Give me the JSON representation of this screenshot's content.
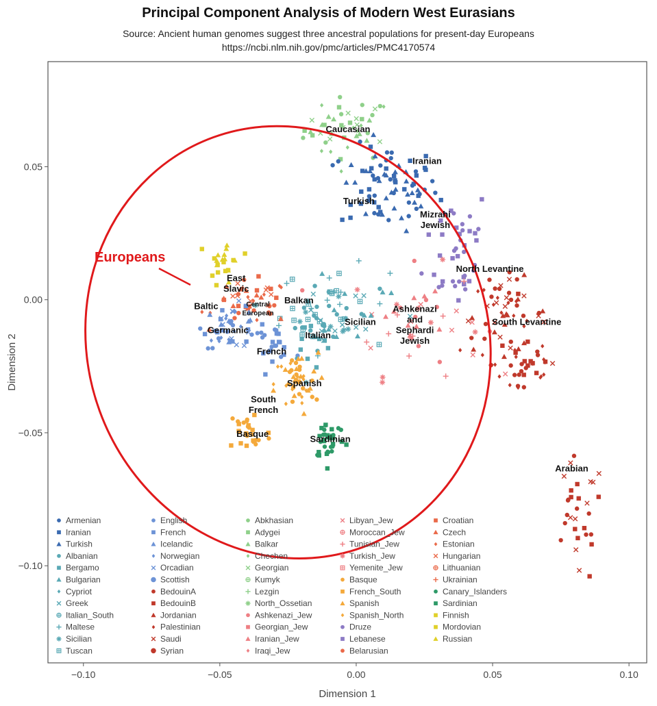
{
  "header": {
    "title": "Principal Component Analysis of Modern West Eurasians",
    "subtitle_line1": "Source: Ancient human genomes suggest three ancestral populations for present-day Europeans",
    "subtitle_line2": "https://ncbi.nlm.nih.gov/pmc/articles/PMC4170574"
  },
  "chart_data": {
    "type": "scatter",
    "title": "Principal Component Analysis of Modern West Eurasians",
    "xlabel": "Dimension 1",
    "ylabel": "Dimension 2",
    "xlim": [
      -0.113,
      0.1065
    ],
    "ylim": [
      -0.1365,
      0.0895
    ],
    "xticks": [
      -0.1,
      -0.05,
      0.0,
      0.05,
      0.1
    ],
    "xtick_labels": [
      "−0.10",
      "−0.05",
      "0.00",
      "0.05",
      "0.10"
    ],
    "yticks": [
      0.05,
      0.0,
      -0.05,
      -0.1
    ],
    "ytick_labels": [
      "0.05",
      "0.00",
      "−0.05",
      "−0.10"
    ],
    "grid": false,
    "legend_position": "bottom-inside",
    "highlight": {
      "label": "Europeans",
      "color": "#e0191b",
      "ellipse_center": [
        -0.025,
        -0.016
      ],
      "ellipse_radii": [
        0.0735,
        0.082
      ],
      "ellipse_rotation_deg": -20
    },
    "cluster_labels": [
      {
        "text": "Caucasian",
        "x": -0.003,
        "y": 0.064
      },
      {
        "text": "Iranian",
        "x": 0.026,
        "y": 0.052
      },
      {
        "text": "Turkish",
        "x": 0.001,
        "y": 0.037
      },
      {
        "text": "Mizrahi",
        "x": 0.029,
        "y": 0.032
      },
      {
        "text": "Jewish",
        "x": 0.029,
        "y": 0.028
      },
      {
        "text": "North Levantine",
        "x": 0.049,
        "y": 0.0115
      },
      {
        "text": "East",
        "x": -0.044,
        "y": 0.008
      },
      {
        "text": "Slavic",
        "x": -0.044,
        "y": 0.004
      },
      {
        "text": "Central",
        "x": -0.036,
        "y": -0.0015,
        "size": "small"
      },
      {
        "text": "European",
        "x": -0.036,
        "y": -0.0048,
        "size": "small"
      },
      {
        "text": "Baltic",
        "x": -0.055,
        "y": -0.0025
      },
      {
        "text": "Balkan",
        "x": -0.021,
        "y": -0.0003
      },
      {
        "text": "Germanic",
        "x": -0.047,
        "y": -0.0115
      },
      {
        "text": "Ashkenazi",
        "x": 0.0215,
        "y": -0.0035
      },
      {
        "text": "and",
        "x": 0.0215,
        "y": -0.0075
      },
      {
        "text": "Sephardi",
        "x": 0.0215,
        "y": -0.0115
      },
      {
        "text": "Jewish",
        "x": 0.0215,
        "y": -0.0155
      },
      {
        "text": "Sicilian",
        "x": 0.0015,
        "y": -0.0085
      },
      {
        "text": "South Levantine",
        "x": 0.0625,
        "y": -0.0085
      },
      {
        "text": "Italian",
        "x": -0.014,
        "y": -0.0135
      },
      {
        "text": "French",
        "x": -0.031,
        "y": -0.0195
      },
      {
        "text": "Spanish",
        "x": -0.019,
        "y": -0.0315
      },
      {
        "text": "South",
        "x": -0.034,
        "y": -0.0375
      },
      {
        "text": "French",
        "x": -0.034,
        "y": -0.0415
      },
      {
        "text": "Basque",
        "x": -0.038,
        "y": -0.0505
      },
      {
        "text": "Sardinian",
        "x": -0.0095,
        "y": -0.0525
      },
      {
        "text": "Arabian",
        "x": 0.079,
        "y": -0.0635
      }
    ],
    "legend": [
      {
        "name": "Armenian",
        "color": "#3a6ab0",
        "shape": "circle"
      },
      {
        "name": "Iranian",
        "color": "#3a6ab0",
        "shape": "square"
      },
      {
        "name": "Turkish",
        "color": "#3a6ab0",
        "shape": "triangle"
      },
      {
        "name": "Albanian",
        "color": "#5aa9b5",
        "shape": "circle"
      },
      {
        "name": "Bergamo",
        "color": "#5aa9b5",
        "shape": "square"
      },
      {
        "name": "Bulgarian",
        "color": "#5aa9b5",
        "shape": "triangle"
      },
      {
        "name": "Cypriot",
        "color": "#5aa9b5",
        "shape": "diamond"
      },
      {
        "name": "Greek",
        "color": "#5aa9b5",
        "shape": "x"
      },
      {
        "name": "Italian_South",
        "color": "#5aa9b5",
        "shape": "circleplus"
      },
      {
        "name": "Maltese",
        "color": "#5aa9b5",
        "shape": "plus"
      },
      {
        "name": "Sicilian",
        "color": "#5aa9b5",
        "shape": "star"
      },
      {
        "name": "Tuscan",
        "color": "#5aa9b5",
        "shape": "boxplus"
      },
      {
        "name": "English",
        "color": "#6d93d6",
        "shape": "circle"
      },
      {
        "name": "French",
        "color": "#6d93d6",
        "shape": "square"
      },
      {
        "name": "Icelandic",
        "color": "#6d93d6",
        "shape": "triangle"
      },
      {
        "name": "Norwegian",
        "color": "#6d93d6",
        "shape": "diamond"
      },
      {
        "name": "Orcadian",
        "color": "#6d93d6",
        "shape": "x"
      },
      {
        "name": "Scottish",
        "color": "#6d93d6",
        "shape": "bigcircle"
      },
      {
        "name": "BedouinA",
        "color": "#c0392b",
        "shape": "circle"
      },
      {
        "name": "BedouinB",
        "color": "#c0392b",
        "shape": "square"
      },
      {
        "name": "Jordanian",
        "color": "#c0392b",
        "shape": "triangle"
      },
      {
        "name": "Palestinian",
        "color": "#c0392b",
        "shape": "diamond"
      },
      {
        "name": "Saudi",
        "color": "#c0392b",
        "shape": "x"
      },
      {
        "name": "Syrian",
        "color": "#c0392b",
        "shape": "bigcircle"
      },
      {
        "name": "Abkhasian",
        "color": "#8fd08a",
        "shape": "circle"
      },
      {
        "name": "Adygei",
        "color": "#8fd08a",
        "shape": "square"
      },
      {
        "name": "Balkar",
        "color": "#8fd08a",
        "shape": "triangle"
      },
      {
        "name": "Chechen",
        "color": "#8fd08a",
        "shape": "diamond"
      },
      {
        "name": "Georgian",
        "color": "#8fd08a",
        "shape": "x"
      },
      {
        "name": "Kumyk",
        "color": "#8fd08a",
        "shape": "circleplus"
      },
      {
        "name": "Lezgin",
        "color": "#8fd08a",
        "shape": "plus"
      },
      {
        "name": "North_Ossetian",
        "color": "#8fd08a",
        "shape": "star"
      },
      {
        "name": "Ashkenazi_Jew",
        "color": "#ee7f84",
        "shape": "circle"
      },
      {
        "name": "Georgian_Jew",
        "color": "#ee7f84",
        "shape": "square"
      },
      {
        "name": "Iranian_Jew",
        "color": "#ee7f84",
        "shape": "triangle"
      },
      {
        "name": "Iraqi_Jew",
        "color": "#ee7f84",
        "shape": "diamond"
      },
      {
        "name": "Libyan_Jew",
        "color": "#ee7f84",
        "shape": "x"
      },
      {
        "name": "Moroccan_Jew",
        "color": "#ee7f84",
        "shape": "circleplus"
      },
      {
        "name": "Tunisian_Jew",
        "color": "#ee7f84",
        "shape": "plus"
      },
      {
        "name": "Turkish_Jew",
        "color": "#ee7f84",
        "shape": "star"
      },
      {
        "name": "Yemenite_Jew",
        "color": "#ee7f84",
        "shape": "boxplus"
      },
      {
        "name": "Basque",
        "color": "#f4a93b",
        "shape": "circle"
      },
      {
        "name": "French_South",
        "color": "#f4a93b",
        "shape": "square"
      },
      {
        "name": "Spanish",
        "color": "#f4a93b",
        "shape": "triangle"
      },
      {
        "name": "Spanish_North",
        "color": "#f4a93b",
        "shape": "diamond"
      },
      {
        "name": "Druze",
        "color": "#8d7bc5",
        "shape": "circle"
      },
      {
        "name": "Lebanese",
        "color": "#8d7bc5",
        "shape": "square"
      },
      {
        "name": "Belarusian",
        "color": "#ea6a4a",
        "shape": "circle"
      },
      {
        "name": "Croatian",
        "color": "#ea6a4a",
        "shape": "square"
      },
      {
        "name": "Czech",
        "color": "#ea6a4a",
        "shape": "triangle"
      },
      {
        "name": "Estonian",
        "color": "#ea6a4a",
        "shape": "diamond"
      },
      {
        "name": "Hungarian",
        "color": "#ea6a4a",
        "shape": "x"
      },
      {
        "name": "Lithuanian",
        "color": "#ea6a4a",
        "shape": "circleplus"
      },
      {
        "name": "Ukrainian",
        "color": "#ea6a4a",
        "shape": "plus"
      },
      {
        "name": "Canary_Islanders",
        "color": "#2e9a68",
        "shape": "circle"
      },
      {
        "name": "Sardinian",
        "color": "#2e9a68",
        "shape": "square"
      },
      {
        "name": "Finnish",
        "color": "#e0d02a",
        "shape": "square"
      },
      {
        "name": "Mordovian",
        "color": "#e0d02a",
        "shape": "square"
      },
      {
        "name": "Russian",
        "color": "#e0d02a",
        "shape": "triangle"
      }
    ],
    "clusters": [
      {
        "color": "#8fd08a",
        "shapes": [
          "circle",
          "square",
          "triangle",
          "diamond",
          "x"
        ],
        "cx": -0.003,
        "cy": 0.064,
        "sx": 0.008,
        "sy": 0.006,
        "n": 45
      },
      {
        "color": "#3a6ab0",
        "shapes": [
          "triangle",
          "square",
          "circle"
        ],
        "cx": 0.012,
        "cy": 0.042,
        "sx": 0.009,
        "sy": 0.008,
        "n": 80
      },
      {
        "color": "#8d7bc5",
        "shapes": [
          "circle",
          "square"
        ],
        "cx": 0.037,
        "cy": 0.02,
        "sx": 0.006,
        "sy": 0.012,
        "n": 40
      },
      {
        "color": "#ee7f84",
        "shapes": [
          "circle",
          "x",
          "plus",
          "triangle",
          "star"
        ],
        "cx": 0.022,
        "cy": -0.008,
        "sx": 0.012,
        "sy": 0.01,
        "n": 45
      },
      {
        "color": "#5aa9b5",
        "shapes": [
          "circle",
          "x",
          "triangle",
          "plus",
          "star",
          "boxplus"
        ],
        "cx": -0.008,
        "cy": -0.004,
        "sx": 0.01,
        "sy": 0.008,
        "n": 70
      },
      {
        "color": "#c0392b",
        "shapes": [
          "circle",
          "diamond",
          "x",
          "triangle"
        ],
        "cx": 0.054,
        "cy": -0.006,
        "sx": 0.008,
        "sy": 0.007,
        "n": 55
      },
      {
        "color": "#c0392b",
        "shapes": [
          "circle",
          "diamond",
          "square"
        ],
        "cx": 0.062,
        "cy": -0.024,
        "sx": 0.006,
        "sy": 0.008,
        "n": 35
      },
      {
        "color": "#c0392b",
        "shapes": [
          "square",
          "circle",
          "x"
        ],
        "cx": 0.081,
        "cy": -0.084,
        "sx": 0.005,
        "sy": 0.012,
        "n": 30
      },
      {
        "color": "#ea6a4a",
        "shapes": [
          "circle",
          "square",
          "x",
          "diamond",
          "triangle"
        ],
        "cx": -0.038,
        "cy": -0.001,
        "sx": 0.007,
        "sy": 0.004,
        "n": 45
      },
      {
        "color": "#e0d02a",
        "shapes": [
          "square",
          "triangle"
        ],
        "cx": -0.048,
        "cy": 0.014,
        "sx": 0.003,
        "sy": 0.005,
        "n": 22
      },
      {
        "color": "#6d93d6",
        "shapes": [
          "circle",
          "square",
          "triangle",
          "x",
          "diamond"
        ],
        "cx": -0.046,
        "cy": -0.01,
        "sx": 0.005,
        "sy": 0.004,
        "n": 45
      },
      {
        "color": "#6d93d6",
        "shapes": [
          "square",
          "circle"
        ],
        "cx": -0.031,
        "cy": -0.016,
        "sx": 0.004,
        "sy": 0.003,
        "n": 25
      },
      {
        "color": "#5aa9b5",
        "shapes": [
          "square",
          "boxplus",
          "circle"
        ],
        "cx": -0.017,
        "cy": -0.012,
        "sx": 0.004,
        "sy": 0.006,
        "n": 25
      },
      {
        "color": "#f4a93b",
        "shapes": [
          "triangle",
          "circle",
          "diamond"
        ],
        "cx": -0.022,
        "cy": -0.032,
        "sx": 0.004,
        "sy": 0.006,
        "n": 50
      },
      {
        "color": "#f4a93b",
        "shapes": [
          "circle",
          "square"
        ],
        "cx": -0.039,
        "cy": -0.05,
        "sx": 0.004,
        "sy": 0.005,
        "n": 25
      },
      {
        "color": "#2e9a68",
        "shapes": [
          "square",
          "circle"
        ],
        "cx": -0.01,
        "cy": -0.052,
        "sx": 0.003,
        "sy": 0.004,
        "n": 35
      }
    ]
  }
}
